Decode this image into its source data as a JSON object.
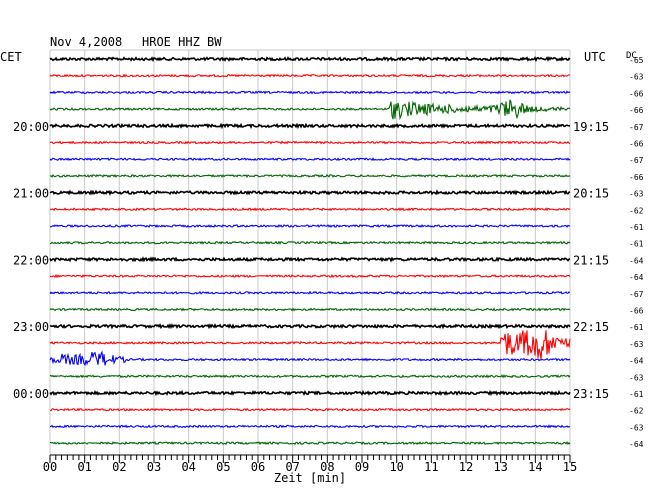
{
  "header": {
    "date": "Nov 4,2008",
    "station": "HROE HHZ BW",
    "left_zone": "CET",
    "right_zone": "UTC",
    "dc_label": "DC"
  },
  "chart_data": {
    "type": "line",
    "title": "Nov 4,2008   HROE HHZ BW",
    "xlabel": "Zeit [min]",
    "xlim": [
      0,
      15
    ],
    "x_ticks": [
      "00",
      "01",
      "02",
      "03",
      "04",
      "05",
      "06",
      "07",
      "08",
      "09",
      "10",
      "11",
      "12",
      "13",
      "14",
      "15"
    ],
    "grid": true,
    "trace_colors": [
      "#000000",
      "#ff0000",
      "#0000ff",
      "#006400"
    ],
    "left_times": [
      "20:00",
      "21:00",
      "22:00",
      "23:00",
      "00:00"
    ],
    "right_times": [
      "19:15",
      "20:15",
      "21:15",
      "22:15",
      "23:15"
    ],
    "time_label_rows": [
      4,
      8,
      12,
      16,
      20
    ],
    "dc_offsets": [
      -65,
      -63,
      -66,
      -66,
      -67,
      -66,
      -67,
      -66,
      -63,
      -62,
      -61,
      -61,
      -64,
      -64,
      -67,
      -66,
      -61,
      -63,
      -64,
      -63,
      -61,
      -62,
      -63,
      -64
    ],
    "events": [
      {
        "trace": 3,
        "start_min": 9.8,
        "end_min": 14.8,
        "amplitude": "large",
        "secondary_peak_min": 13.3
      },
      {
        "trace": 17,
        "start_min": 13.0,
        "end_min": 15.0,
        "amplitude": "very large",
        "secondary_peak_min": 14.1
      },
      {
        "trace": 18,
        "start_min": 0.0,
        "end_min": 2.2,
        "amplitude": "medium",
        "secondary_peak_min": 1.4
      }
    ]
  }
}
